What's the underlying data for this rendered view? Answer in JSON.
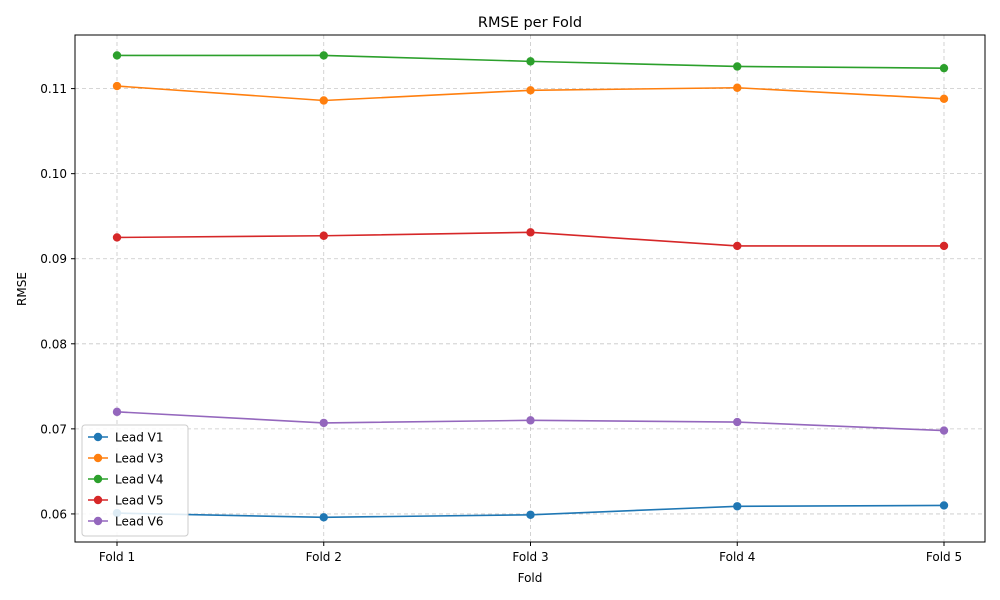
{
  "chart_data": {
    "type": "line",
    "title": "RMSE per Fold",
    "xlabel": "Fold",
    "ylabel": "RMSE",
    "categories": [
      "Fold 1",
      "Fold 2",
      "Fold 3",
      "Fold 4",
      "Fold 5"
    ],
    "ylim": [
      0.0567,
      0.1163
    ],
    "yticks": [
      0.06,
      0.07,
      0.08,
      0.09,
      0.1,
      0.11
    ],
    "ytick_labels": [
      "0.06",
      "0.07",
      "0.08",
      "0.09",
      "0.10",
      "0.11"
    ],
    "grid": true,
    "legend_position": "lower-left",
    "marker": "circle",
    "series": [
      {
        "name": "Lead V1",
        "color": "#1f77b4",
        "values": [
          0.0601,
          0.0596,
          0.0599,
          0.0609,
          0.061
        ]
      },
      {
        "name": "Lead V3",
        "color": "#ff7f0e",
        "values": [
          0.1103,
          0.1086,
          0.1098,
          0.1101,
          0.1088
        ]
      },
      {
        "name": "Lead V4",
        "color": "#2ca02c",
        "values": [
          0.1139,
          0.1139,
          0.1132,
          0.1126,
          0.1124
        ]
      },
      {
        "name": "Lead V5",
        "color": "#d62728",
        "values": [
          0.0925,
          0.0927,
          0.0931,
          0.0915,
          0.0915
        ]
      },
      {
        "name": "Lead V6",
        "color": "#9467bd",
        "values": [
          0.072,
          0.0707,
          0.071,
          0.0708,
          0.0698
        ]
      }
    ]
  }
}
